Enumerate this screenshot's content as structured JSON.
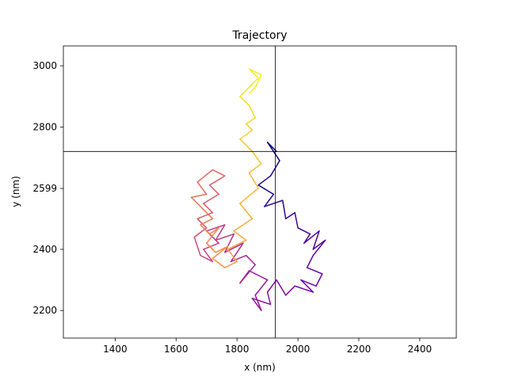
{
  "chart_data": {
    "type": "line",
    "title": "Trajectory",
    "xlabel": "x (nm)",
    "ylabel": "y (nm)",
    "xlim": [
      1230,
      2520
    ],
    "ylim": [
      2110,
      3065
    ],
    "x_ticks": [
      1400,
      1600,
      1800,
      2000,
      2200,
      2400
    ],
    "y_ticks": [
      2200,
      2400,
      2599,
      2800,
      3000
    ],
    "x_tick_labels": [
      "1400",
      "1600",
      "1800",
      "2000",
      "2200",
      "2400"
    ],
    "y_tick_labels": [
      "2200",
      "2400",
      "2599",
      "2800",
      "3000"
    ],
    "crosshair": {
      "x": 1926,
      "y": 2720
    },
    "colormap": "plasma",
    "grid": false,
    "series": [
      {
        "x": [
          1930,
          1900,
          1940,
          1910,
          1870,
          1920,
          1890,
          1950,
          1960,
          1990,
          2000,
          2040,
          2020,
          2070,
          2050,
          2090,
          2050,
          2030,
          2080,
          2060,
          2010,
          2050,
          1990,
          1960,
          1930,
          1900,
          1910,
          1850,
          1880,
          1860,
          1900,
          1840,
          1810,
          1860,
          1830,
          1780,
          1820,
          1760,
          1790,
          1730,
          1760,
          1700,
          1740,
          1690,
          1720,
          1680,
          1660,
          1700,
          1670,
          1720,
          1690,
          1740,
          1710,
          1760,
          1720,
          1670,
          1700,
          1650,
          1690,
          1720,
          1680,
          1710,
          1740,
          1700,
          1730,
          1770,
          1720,
          1760,
          1800,
          1770,
          1830,
          1790,
          1850,
          1810,
          1870,
          1840,
          1880,
          1850,
          1810,
          1850,
          1830,
          1860,
          1840,
          1810,
          1850,
          1870,
          1840,
          1880,
          1860,
          1840
        ],
        "y": [
          2720,
          2750,
          2690,
          2640,
          2610,
          2580,
          2540,
          2560,
          2500,
          2520,
          2470,
          2450,
          2420,
          2460,
          2400,
          2430,
          2380,
          2340,
          2320,
          2280,
          2300,
          2260,
          2280,
          2250,
          2300,
          2260,
          2220,
          2240,
          2200,
          2250,
          2300,
          2330,
          2290,
          2350,
          2380,
          2360,
          2420,
          2390,
          2450,
          2430,
          2480,
          2460,
          2420,
          2400,
          2360,
          2380,
          2440,
          2470,
          2500,
          2520,
          2550,
          2580,
          2610,
          2640,
          2660,
          2620,
          2580,
          2570,
          2530,
          2500,
          2480,
          2450,
          2470,
          2420,
          2390,
          2410,
          2370,
          2340,
          2360,
          2400,
          2430,
          2460,
          2500,
          2550,
          2600,
          2650,
          2680,
          2720,
          2760,
          2790,
          2810,
          2830,
          2870,
          2900,
          2940,
          2960,
          2990,
          2970,
          2930,
          2910
        ]
      }
    ]
  }
}
